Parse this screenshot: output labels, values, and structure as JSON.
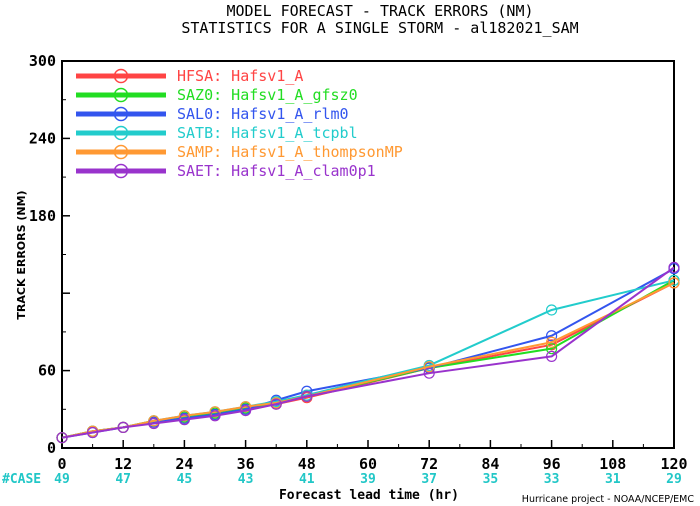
{
  "title_line1": "MODEL FORECAST - TRACK ERRORS (NM)",
  "title_line2": "STATISTICS FOR A SINGLE STORM - al182021_SAM",
  "credit": "Hurricane project - NOAA/NCEP/EMC",
  "case_label": "#CASE",
  "case_counts": [
    "49",
    "47",
    "45",
    "43",
    "41",
    "39",
    "37",
    "35",
    "33",
    "31",
    "29"
  ],
  "chart_data": {
    "type": "line",
    "xlabel": "Forecast lead time (hr)",
    "ylabel": "TRACK ERRORS (NM)",
    "xlim": [
      0,
      120
    ],
    "ylim": [
      0,
      300
    ],
    "x_ticks": [
      0,
      12,
      24,
      36,
      48,
      60,
      72,
      84,
      96,
      108,
      120
    ],
    "y_ticks": [
      0,
      60,
      120,
      180,
      240,
      300
    ],
    "y_tick_labels": [
      "0",
      "60",
      "",
      "180",
      "240",
      "300"
    ],
    "legend_position": "top-left",
    "grid": false,
    "series": [
      {
        "name": "HFSA: Hafsv1_A",
        "color": "#ff4444",
        "x": [
          0,
          6,
          12,
          18,
          24,
          30,
          36,
          42,
          48,
          72,
          96,
          120
        ],
        "y": [
          8,
          13,
          16,
          20,
          23,
          26,
          30,
          34,
          39,
          62,
          80,
          128
        ]
      },
      {
        "name": "SAZ0: Hafsv1_A_gfsz0",
        "color": "#22dd22",
        "x": [
          0,
          6,
          12,
          18,
          24,
          30,
          36,
          42,
          48,
          72,
          96,
          120
        ],
        "y": [
          8,
          13,
          16,
          21,
          24,
          27,
          31,
          35,
          40,
          62,
          77,
          130
        ]
      },
      {
        "name": "SAL0: Hafsv1_A_rlm0",
        "color": "#3355ee",
        "x": [
          0,
          6,
          12,
          18,
          24,
          30,
          36,
          42,
          48,
          72,
          96,
          120
        ],
        "y": [
          8,
          12,
          16,
          20,
          23,
          26,
          30,
          37,
          44,
          62,
          87,
          139
        ]
      },
      {
        "name": "SATB: Hafsv1_A_tcpbl",
        "color": "#22cccc",
        "x": [
          0,
          6,
          12,
          18,
          24,
          30,
          36,
          42,
          48,
          72,
          96,
          120
        ],
        "y": [
          8,
          13,
          16,
          21,
          25,
          28,
          32,
          36,
          41,
          64,
          107,
          130
        ]
      },
      {
        "name": "SAMP: Hafsv1_A_thompsonMP",
        "color": "#ff9933",
        "x": [
          0,
          6,
          12,
          18,
          24,
          30,
          36,
          42,
          48,
          72,
          96,
          120
        ],
        "y": [
          8,
          13,
          16,
          21,
          25,
          28,
          32,
          35,
          40,
          63,
          82,
          128
        ]
      },
      {
        "name": "SAET: Hafsv1_A_clam0p1",
        "color": "#9933cc",
        "x": [
          0,
          6,
          12,
          18,
          24,
          30,
          36,
          42,
          48,
          72,
          96,
          120
        ],
        "y": [
          8,
          12,
          16,
          19,
          22,
          25,
          29,
          34,
          40,
          58,
          71,
          140
        ]
      }
    ]
  }
}
